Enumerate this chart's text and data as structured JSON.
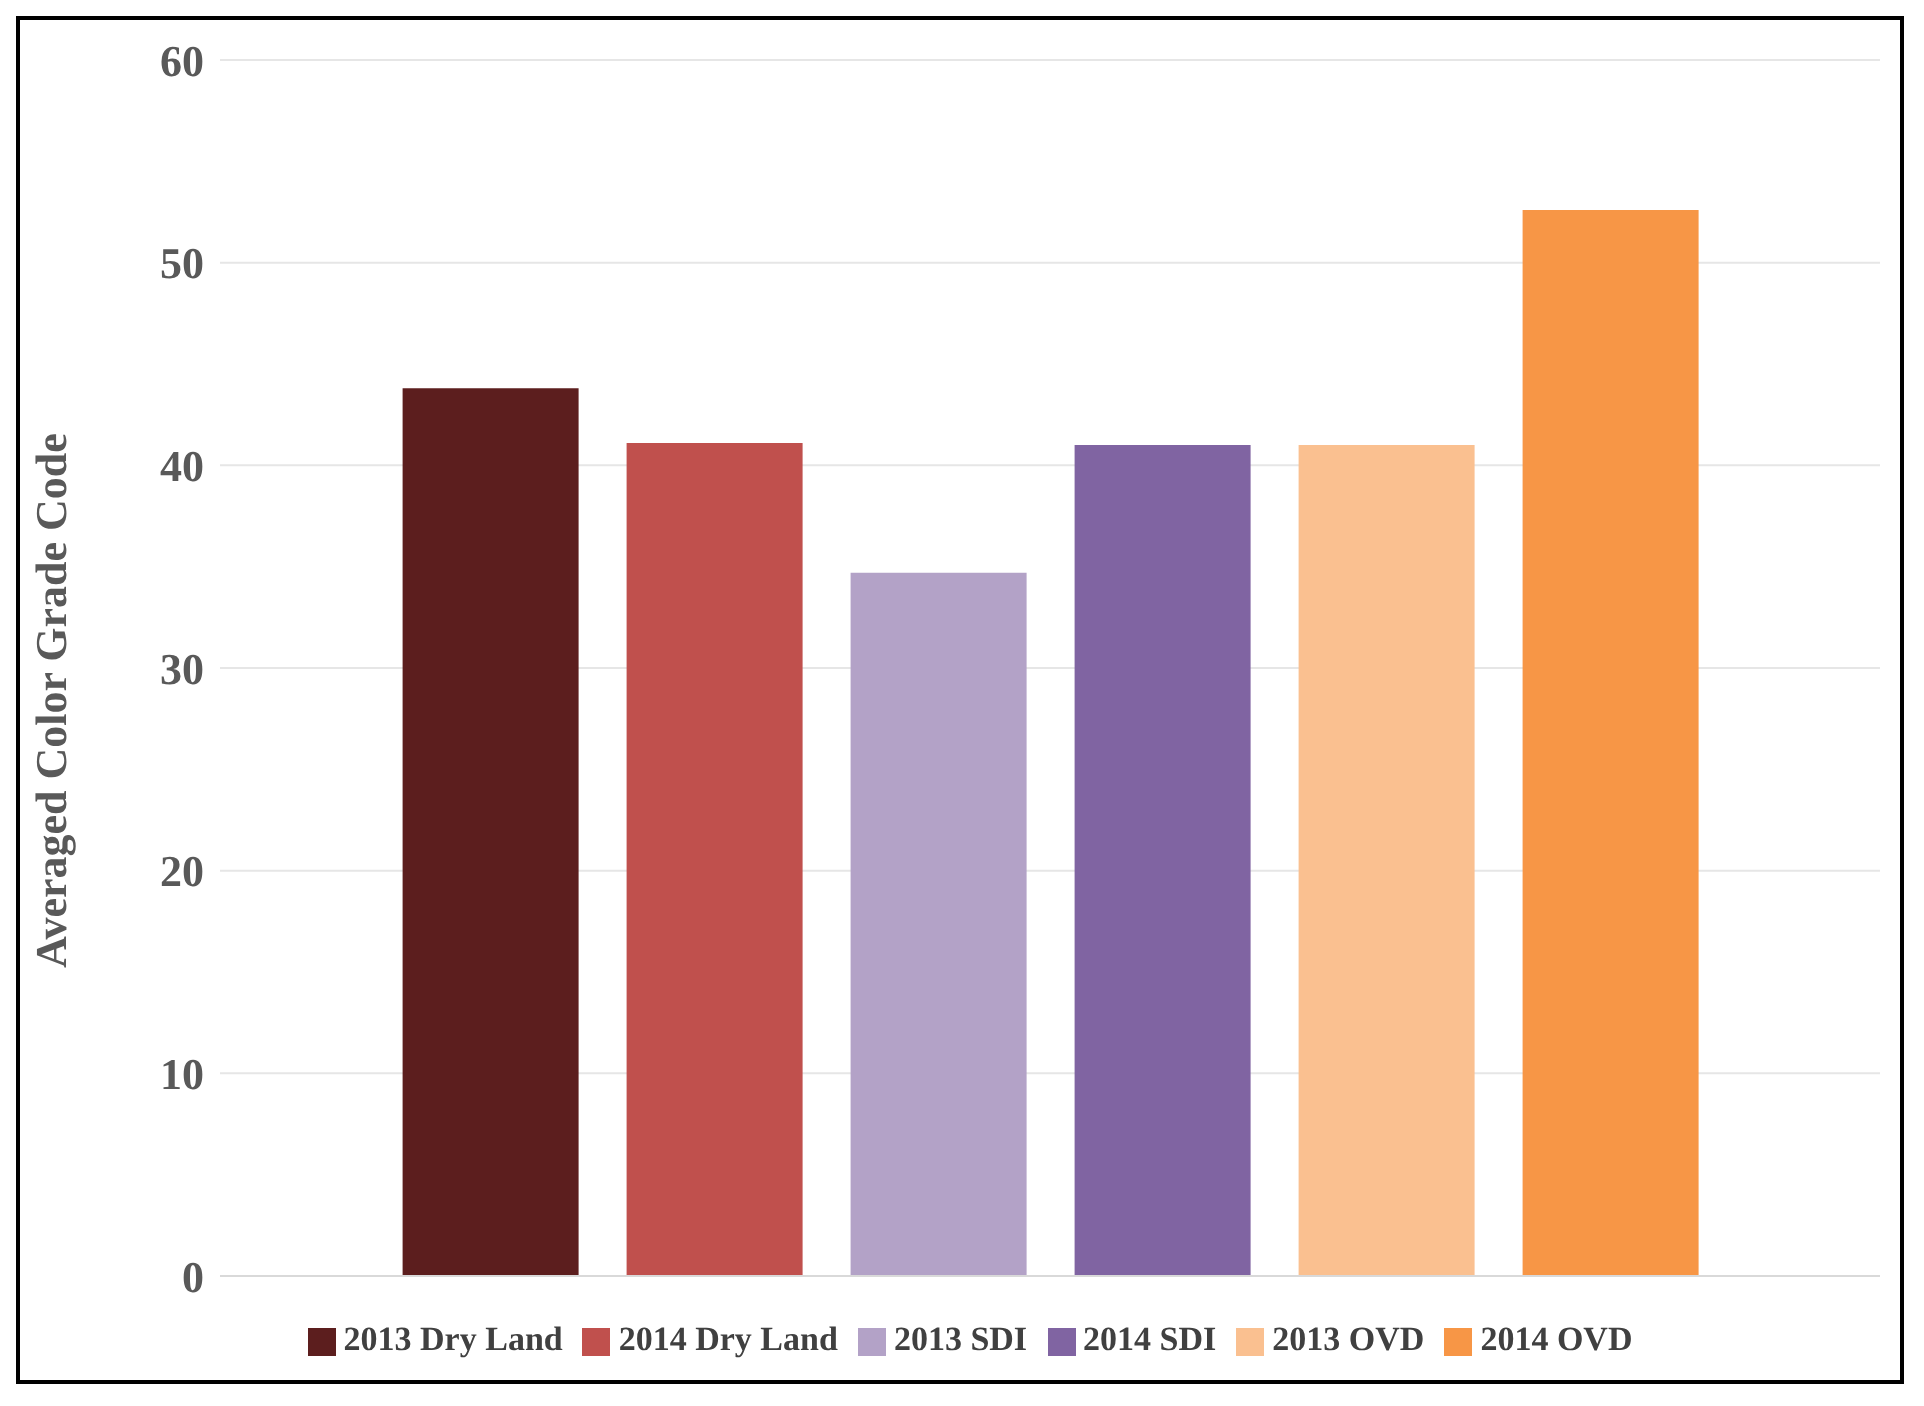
{
  "chart_data": {
    "type": "bar",
    "ylabel": "Averaged Color Grade Code",
    "categories": [
      null
    ],
    "series": [
      {
        "name": "2013 Dry Land",
        "color": "#5c1e1e",
        "values": [
          43.8
        ]
      },
      {
        "name": "2014 Dry Land",
        "color": "#c0504d",
        "values": [
          41.1
        ]
      },
      {
        "name": "2013 SDI",
        "color": "#b3a2c7",
        "values": [
          34.7
        ]
      },
      {
        "name": "2014 SDI",
        "color": "#8064a2",
        "values": [
          41.0
        ]
      },
      {
        "name": "2013 OVD",
        "color": "#fac090",
        "values": [
          41.0
        ]
      },
      {
        "name": "2014 OVD",
        "color": "#f79646",
        "values": [
          52.6
        ]
      }
    ],
    "ylim": [
      0,
      60
    ],
    "yticks": [
      0,
      10,
      20,
      30,
      40,
      50,
      60
    ],
    "grid": "y",
    "legend": "bottom"
  }
}
